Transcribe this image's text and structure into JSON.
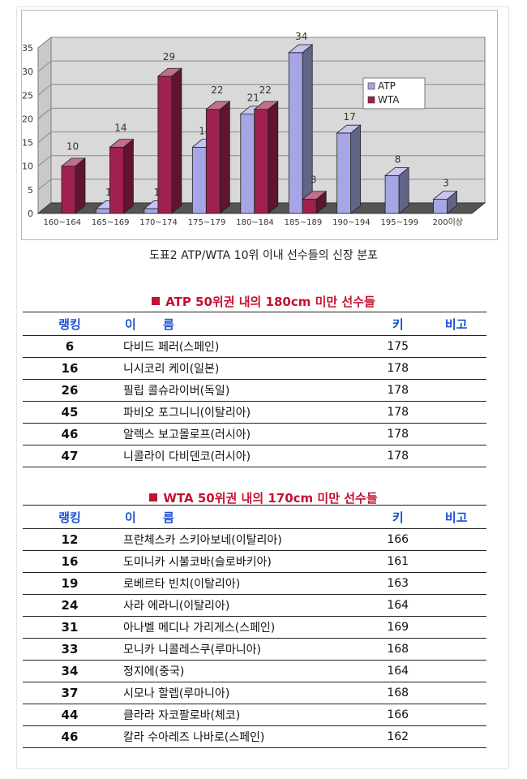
{
  "chart_data": {
    "type": "bar",
    "categories": [
      "160~164",
      "165~169",
      "170~174",
      "175~179",
      "180~184",
      "185~189",
      "190~194",
      "195~199",
      "200이상"
    ],
    "series": [
      {
        "name": "ATP",
        "values": [
          null,
          1,
          1,
          14,
          21,
          34,
          17,
          8,
          3
        ]
      },
      {
        "name": "WTA",
        "values": [
          10,
          14,
          29,
          22,
          22,
          3,
          null,
          null,
          null
        ]
      }
    ],
    "y_ticks": [
      "0",
      "5",
      "10",
      "15",
      "20",
      "25",
      "30",
      "35"
    ],
    "ylim": [
      0,
      35
    ],
    "grid": true,
    "legend_position": "top-right",
    "colors": {
      "ATP": "#a6a6e6",
      "WTA": "#9e2150"
    }
  },
  "caption": "도표2 ATP/WTA 10위 이내 선수들의 신장 분포",
  "atp": {
    "title": "ATP 50위권 내의 180cm 미만 선수들",
    "headers": {
      "rank": "랭킹",
      "name": "이 름",
      "height": "키",
      "note": "비고"
    },
    "rows": [
      {
        "rank": "6",
        "name": "다비드 페러(스페인)",
        "height": "175",
        "note": ""
      },
      {
        "rank": "16",
        "name": "니시코리 케이(일본)",
        "height": "178",
        "note": ""
      },
      {
        "rank": "26",
        "name": "필립 콜슈라이버(독일)",
        "height": "178",
        "note": ""
      },
      {
        "rank": "45",
        "name": "파비오 포그니니(이탈리아)",
        "height": "178",
        "note": ""
      },
      {
        "rank": "46",
        "name": "알렉스 보고몰로프(러시아)",
        "height": "178",
        "note": ""
      },
      {
        "rank": "47",
        "name": "니콜라이 다비덴코(러시아)",
        "height": "178",
        "note": ""
      }
    ]
  },
  "wta": {
    "title": "WTA 50위권 내의 170cm 미만 선수들",
    "headers": {
      "rank": "랭킹",
      "name": "이 름",
      "height": "키",
      "note": "비고"
    },
    "rows": [
      {
        "rank": "12",
        "name": "프란체스카 스키아보네(이탈리아)",
        "height": "166",
        "note": ""
      },
      {
        "rank": "16",
        "name": "도미니카 시불코바(슬로바키아)",
        "height": "161",
        "note": ""
      },
      {
        "rank": "19",
        "name": "로베르타 빈치(이탈리아)",
        "height": "163",
        "note": ""
      },
      {
        "rank": "24",
        "name": "사라 에라니(이탈리아)",
        "height": "164",
        "note": ""
      },
      {
        "rank": "31",
        "name": "아나벨 메디나 가리게스(스페인)",
        "height": "169",
        "note": ""
      },
      {
        "rank": "33",
        "name": "모니카 니콜레스쿠(루마니아)",
        "height": "168",
        "note": ""
      },
      {
        "rank": "34",
        "name": "정지에(중국)",
        "height": "164",
        "note": ""
      },
      {
        "rank": "37",
        "name": "시모나 할렙(루마니아)",
        "height": "168",
        "note": ""
      },
      {
        "rank": "44",
        "name": "클라라 자코팔로바(체코)",
        "height": "166",
        "note": ""
      },
      {
        "rank": "46",
        "name": "칼라 수아레즈 나바로(스페인)",
        "height": "162",
        "note": ""
      }
    ]
  }
}
